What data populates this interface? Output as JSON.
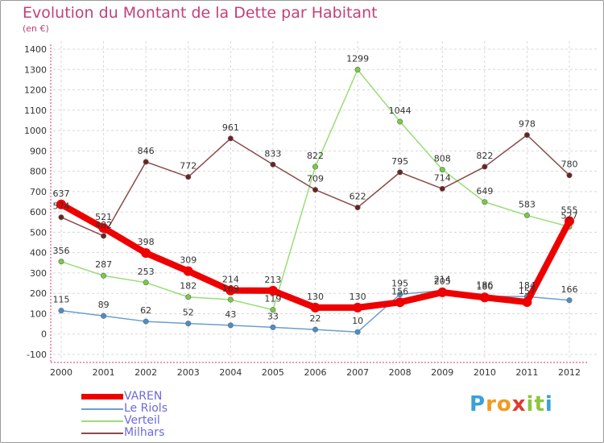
{
  "title": "Evolution du Montant de la Dette par Habitant",
  "unit_label": "(en €)",
  "logo": {
    "letters": [
      "P",
      "r",
      "o",
      "x",
      "i",
      "t",
      "i"
    ],
    "colors": [
      "#3aa0d8",
      "#f39a1f",
      "#f39a1f",
      "#e03a2e",
      "#8cc63f",
      "#8cc63f",
      "#3aa0d8"
    ]
  },
  "chart_data": {
    "type": "line",
    "x": [
      "2000",
      "2001",
      "2002",
      "2003",
      "2004",
      "2005",
      "2006",
      "2007",
      "2008",
      "2009",
      "2010",
      "2011",
      "2012"
    ],
    "ylim": [
      -100,
      1400
    ],
    "yticks": [
      "-100",
      "0",
      "100",
      "200",
      "300",
      "400",
      "500",
      "600",
      "700",
      "800",
      "900",
      "1000",
      "1100",
      "1200",
      "1300",
      "1400"
    ],
    "grid": true,
    "legend_position": "bottom-left",
    "series": [
      {
        "name": "Le Riols",
        "color": "#6aa0cc",
        "point_color": "#4a90c8",
        "values": [
          115,
          89,
          62,
          52,
          43,
          33,
          22,
          10,
          195,
          214,
          186,
          184,
          166
        ],
        "labels": [
          "115",
          "89",
          "62",
          "52",
          "43",
          "33",
          "22",
          "10",
          "195",
          "214",
          "186",
          "184",
          "166"
        ]
      },
      {
        "name": "Verteil",
        "color": "#99dd77",
        "point_color": "#77cc44",
        "values": [
          356,
          287,
          253,
          182,
          169,
          119,
          822,
          1299,
          1044,
          808,
          649,
          583,
          527
        ],
        "labels": [
          "356",
          "287",
          "253",
          "182",
          "169",
          "119",
          "822",
          "1299",
          "1044",
          "808",
          "649",
          "583",
          "527"
        ]
      },
      {
        "name": "Milhars",
        "color": "#8a4a4a",
        "point_color": "#6b2222",
        "values": [
          574,
          482,
          846,
          772,
          961,
          833,
          709,
          622,
          795,
          714,
          822,
          978,
          780
        ],
        "labels": [
          "574",
          "482",
          "846",
          "772",
          "961",
          "833",
          "709",
          "622",
          "795",
          "714",
          "822",
          "978",
          "780"
        ]
      },
      {
        "name": "VAREN",
        "color": "#ee0000",
        "point_color": "#ee0000",
        "values": [
          637,
          521,
          398,
          309,
          214,
          213,
          130,
          130,
          156,
          205,
          180,
          157,
          555
        ],
        "labels": [
          "637",
          "521",
          "398",
          "309",
          "214",
          "213",
          "130",
          "130",
          "156",
          "205",
          "180",
          "157",
          "555"
        ]
      }
    ]
  }
}
